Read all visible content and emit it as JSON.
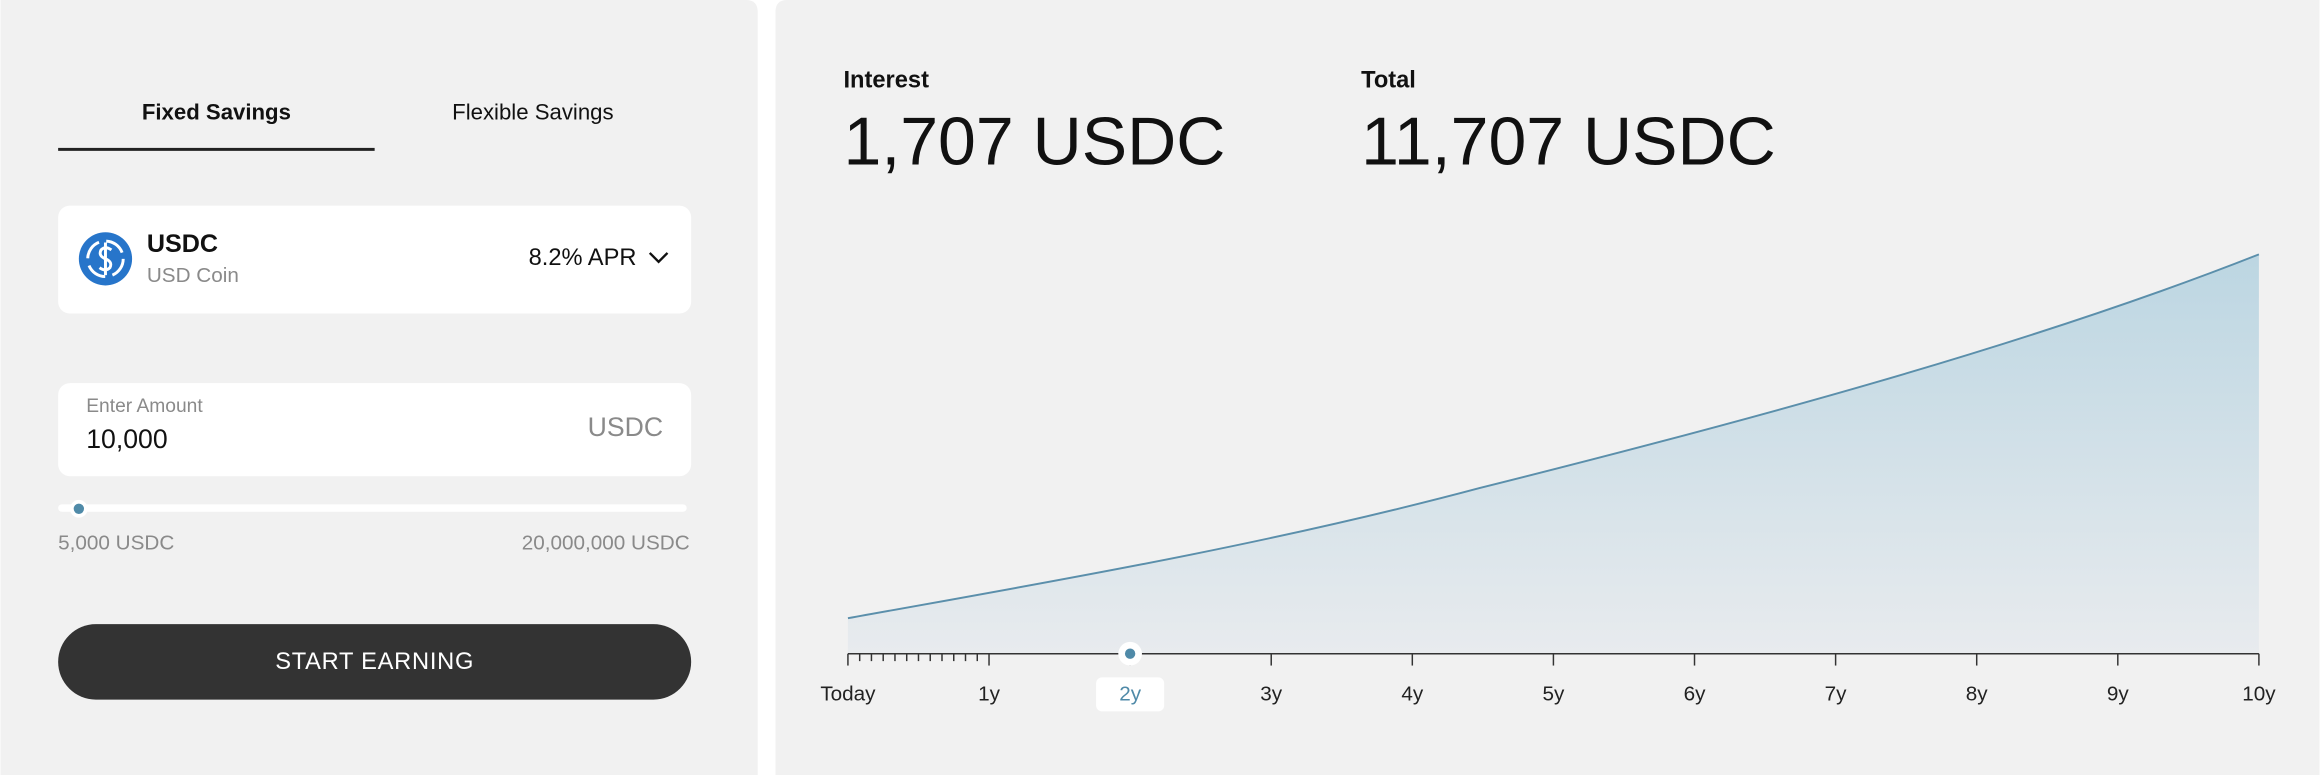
{
  "tabs": [
    "Fixed Savings",
    "Flexible Savings"
  ],
  "asset": {
    "symbol": "USDC",
    "name": "USD Coin",
    "rate": "8.2% APR"
  },
  "amount": {
    "label": "Enter Amount",
    "value": "10,000",
    "unit": "USDC"
  },
  "slider": {
    "min_label": "5,000 USDC",
    "max_label": "20,000,000 USDC"
  },
  "button": "START EARNING",
  "summary": {
    "interest_label": "Interest",
    "interest": "1,707 USDC",
    "total_label": "Total",
    "total": "11,707 USDC"
  },
  "timeline": {
    "labels": [
      "Today",
      "1y",
      "2y",
      "3y",
      "4y",
      "5y",
      "6y",
      "7y",
      "8y",
      "9y",
      "10y"
    ],
    "selected": 2
  }
}
